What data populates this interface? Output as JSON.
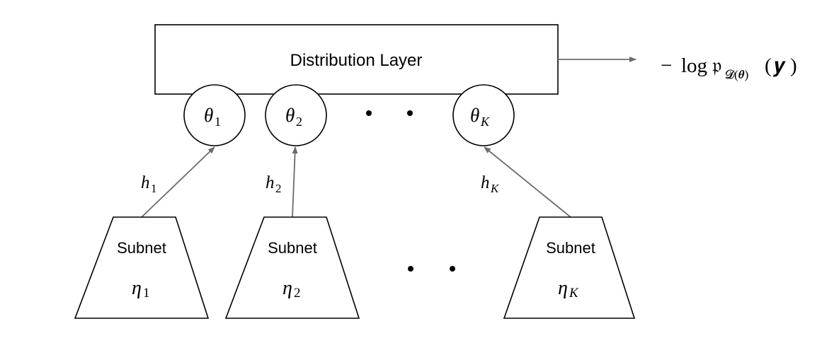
{
  "distribution_layer": {
    "label": "Distribution Layer"
  },
  "output": {
    "minus": "−",
    "log": "log",
    "p_symbol": "𝔭",
    "subscript": "𝓓(𝜽)",
    "open_paren": "(",
    "y": "𝒚",
    "close_paren": ")"
  },
  "params": [
    {
      "symbol": "θ",
      "sub": "1"
    },
    {
      "symbol": "θ",
      "sub": "2"
    },
    {
      "symbol": "θ",
      "sub": "K"
    }
  ],
  "hidden": [
    {
      "symbol": "h",
      "sub": "1"
    },
    {
      "symbol": "h",
      "sub": "2"
    },
    {
      "symbol": "h",
      "sub": "K"
    }
  ],
  "subnets": [
    {
      "label": "Subnet",
      "symbol": "η",
      "sub": "1"
    },
    {
      "label": "Subnet",
      "symbol": "η",
      "sub": "2"
    },
    {
      "label": "Subnet",
      "symbol": "η",
      "sub": "K"
    }
  ],
  "colors": {
    "stroke": "#000000",
    "arrow": "#6b6b6b",
    "background": "#ffffff"
  }
}
